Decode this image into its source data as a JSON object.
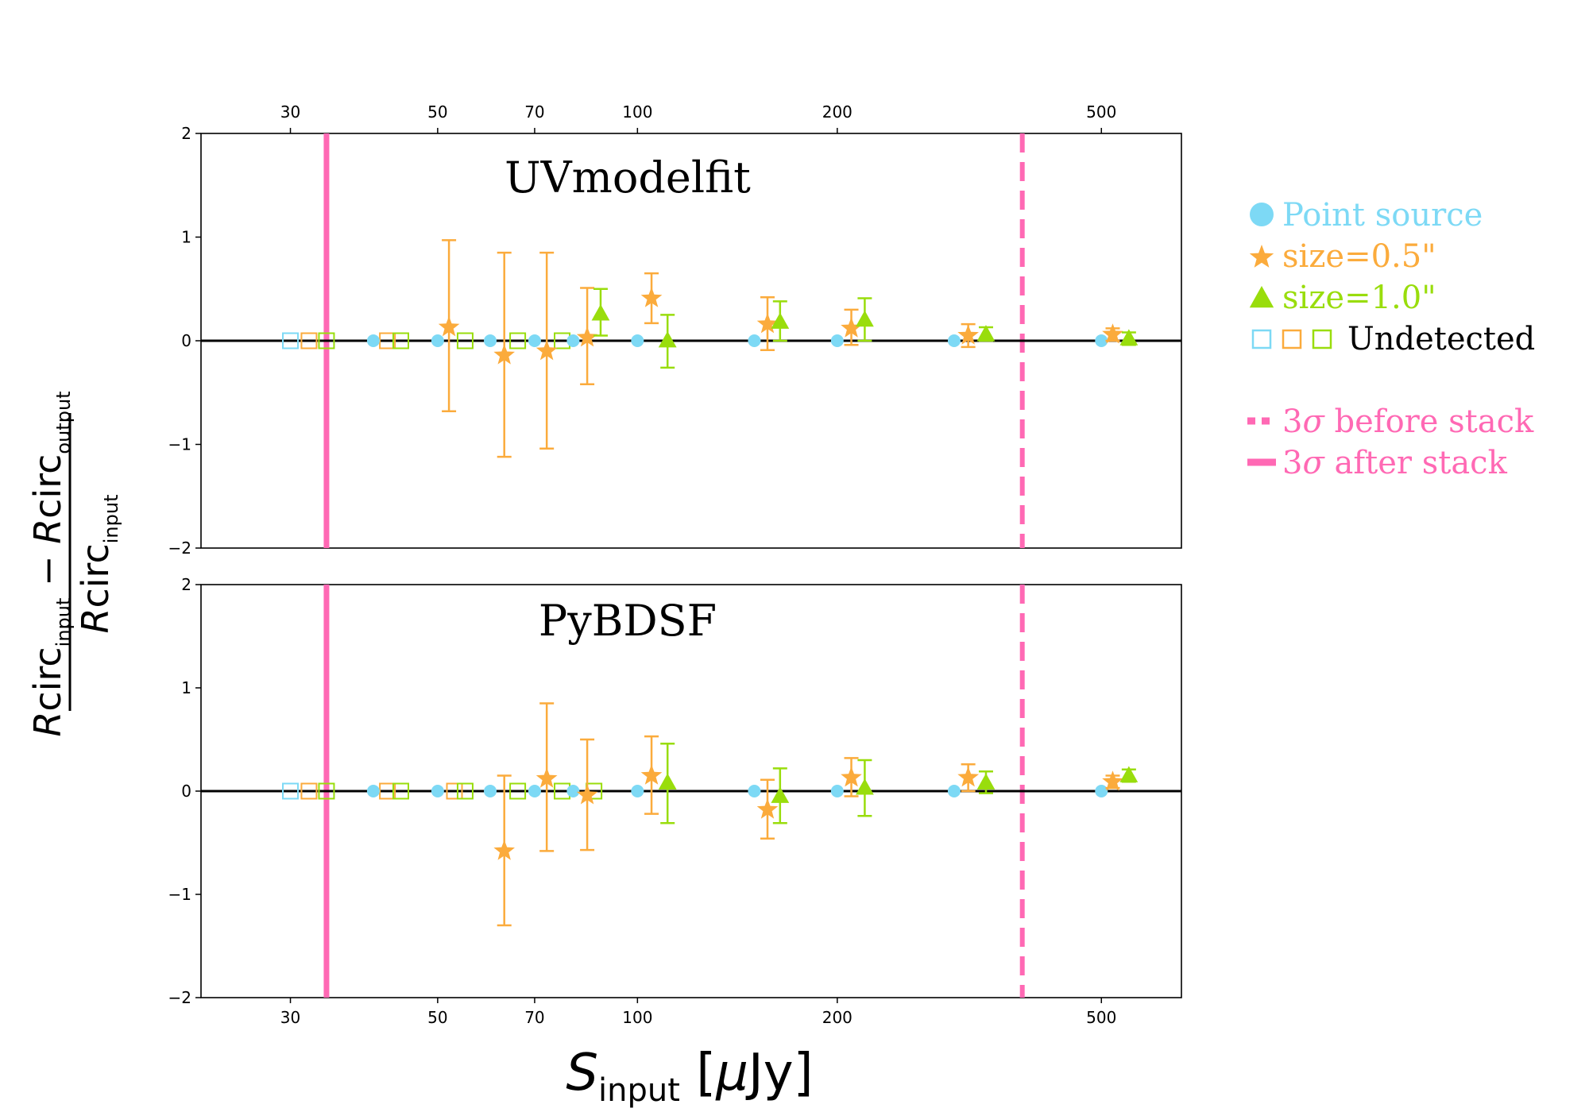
{
  "chart_data": {
    "type": "scatter",
    "xscale": "log",
    "xlim": [
      22,
      660
    ],
    "ylim": [
      -2,
      2
    ],
    "xticks": [
      30,
      50,
      70,
      100,
      200,
      500
    ],
    "xtick_labels": [
      "30",
      "50",
      "70",
      "100",
      "200",
      "500"
    ],
    "yticks": [
      -2,
      -1,
      0,
      1,
      2
    ],
    "ytick_labels": [
      "−2",
      "−1",
      "0",
      "1",
      "2"
    ],
    "xlabel": {
      "main": "S",
      "sub": "input",
      "unit_open": " [",
      "mu": "μ",
      "unit_rest": "Jy]"
    },
    "ylabel": {
      "r": "R",
      "circ": "circ",
      "input": "input",
      "output": "output",
      "minus": " − "
    },
    "colors": {
      "point": "#7dd9f5",
      "size05": "#fbab3c",
      "size10": "#99dd0c",
      "sigma": "#ff69b4",
      "zero": "#000000"
    },
    "vlines": {
      "after_stack": 34.0,
      "before_stack": 380.0
    },
    "legend": {
      "items": [
        {
          "marker": "circle",
          "color_key": "point",
          "label": "Point source"
        },
        {
          "marker": "star",
          "color_key": "size05",
          "label": "size=0.5\""
        },
        {
          "marker": "triangle",
          "color_key": "size10",
          "label": "size=1.0\""
        },
        {
          "marker": "squares",
          "color_key": "zero",
          "label": "Undetected"
        }
      ],
      "lines": [
        {
          "style": "dashed",
          "label_pre": "3",
          "sigma": "σ",
          "label_post": " before stack"
        },
        {
          "style": "solid",
          "label_pre": "3",
          "sigma": "σ",
          "label_post": " after stack"
        }
      ]
    },
    "panels": [
      {
        "title": "UVmodelfit",
        "point": [
          {
            "x": 40,
            "y": 0
          },
          {
            "x": 50,
            "y": 0
          },
          {
            "x": 60,
            "y": 0
          },
          {
            "x": 70,
            "y": 0
          },
          {
            "x": 80,
            "y": 0
          },
          {
            "x": 100,
            "y": 0
          },
          {
            "x": 150,
            "y": 0
          },
          {
            "x": 200,
            "y": 0
          },
          {
            "x": 300,
            "y": 0
          },
          {
            "x": 500,
            "y": 0
          }
        ],
        "size05": [
          {
            "x": 52,
            "y": 0.13,
            "lo": -0.68,
            "hi": 0.97
          },
          {
            "x": 63,
            "y": -0.14,
            "lo": -1.12,
            "hi": 0.85
          },
          {
            "x": 73,
            "y": -0.1,
            "lo": -1.04,
            "hi": 0.85
          },
          {
            "x": 84,
            "y": 0.03,
            "lo": -0.42,
            "hi": 0.51
          },
          {
            "x": 105,
            "y": 0.41,
            "lo": 0.17,
            "hi": 0.65
          },
          {
            "x": 157,
            "y": 0.16,
            "lo": -0.09,
            "hi": 0.42
          },
          {
            "x": 210,
            "y": 0.12,
            "lo": -0.04,
            "hi": 0.3
          },
          {
            "x": 315,
            "y": 0.05,
            "lo": -0.06,
            "hi": 0.16
          },
          {
            "x": 520,
            "y": 0.06,
            "lo": 0.0,
            "hi": 0.12
          }
        ],
        "size10": [
          {
            "x": 88,
            "y": 0.26,
            "lo": 0.05,
            "hi": 0.5
          },
          {
            "x": 111,
            "y": 0.0,
            "lo": -0.26,
            "hi": 0.25
          },
          {
            "x": 164,
            "y": 0.18,
            "lo": 0.0,
            "hi": 0.38
          },
          {
            "x": 220,
            "y": 0.2,
            "lo": 0.0,
            "hi": 0.41
          },
          {
            "x": 335,
            "y": 0.06,
            "lo": 0.0,
            "hi": 0.13
          },
          {
            "x": 550,
            "y": 0.02,
            "lo": -0.04,
            "hi": 0.08
          }
        ],
        "undetected": [
          {
            "x": 30,
            "color_key": "point"
          },
          {
            "x": 32,
            "color_key": "size05"
          },
          {
            "x": 34,
            "color_key": "size10"
          },
          {
            "x": 42,
            "color_key": "size05"
          },
          {
            "x": 44,
            "color_key": "size10"
          },
          {
            "x": 55,
            "color_key": "size10"
          },
          {
            "x": 66,
            "color_key": "size10"
          },
          {
            "x": 77,
            "color_key": "size10"
          }
        ]
      },
      {
        "title": "PyBDSF",
        "point": [
          {
            "x": 40,
            "y": 0
          },
          {
            "x": 50,
            "y": 0
          },
          {
            "x": 60,
            "y": 0
          },
          {
            "x": 70,
            "y": 0
          },
          {
            "x": 80,
            "y": 0
          },
          {
            "x": 100,
            "y": 0
          },
          {
            "x": 150,
            "y": 0
          },
          {
            "x": 200,
            "y": 0
          },
          {
            "x": 300,
            "y": 0
          },
          {
            "x": 500,
            "y": 0
          }
        ],
        "size05": [
          {
            "x": 63,
            "y": -0.58,
            "lo": -1.3,
            "hi": 0.15
          },
          {
            "x": 73,
            "y": 0.12,
            "lo": -0.58,
            "hi": 0.85
          },
          {
            "x": 84,
            "y": -0.04,
            "lo": -0.57,
            "hi": 0.5
          },
          {
            "x": 105,
            "y": 0.15,
            "lo": -0.22,
            "hi": 0.53
          },
          {
            "x": 157,
            "y": -0.18,
            "lo": -0.46,
            "hi": 0.11
          },
          {
            "x": 210,
            "y": 0.13,
            "lo": -0.05,
            "hi": 0.32
          },
          {
            "x": 315,
            "y": 0.13,
            "lo": 0.0,
            "hi": 0.26
          },
          {
            "x": 520,
            "y": 0.09,
            "lo": 0.03,
            "hi": 0.15
          }
        ],
        "size10": [
          {
            "x": 111,
            "y": 0.08,
            "lo": -0.31,
            "hi": 0.46
          },
          {
            "x": 164,
            "y": -0.05,
            "lo": -0.31,
            "hi": 0.22
          },
          {
            "x": 220,
            "y": 0.03,
            "lo": -0.24,
            "hi": 0.3
          },
          {
            "x": 335,
            "y": 0.08,
            "lo": -0.02,
            "hi": 0.19
          },
          {
            "x": 550,
            "y": 0.15,
            "lo": 0.09,
            "hi": 0.21
          }
        ],
        "undetected": [
          {
            "x": 30,
            "color_key": "point"
          },
          {
            "x": 32,
            "color_key": "size05"
          },
          {
            "x": 34,
            "color_key": "size10"
          },
          {
            "x": 42,
            "color_key": "size05"
          },
          {
            "x": 44,
            "color_key": "size10"
          },
          {
            "x": 53,
            "color_key": "size05"
          },
          {
            "x": 55,
            "color_key": "size10"
          },
          {
            "x": 66,
            "color_key": "size10"
          },
          {
            "x": 77,
            "color_key": "size10"
          },
          {
            "x": 86,
            "color_key": "size10"
          }
        ]
      }
    ]
  }
}
